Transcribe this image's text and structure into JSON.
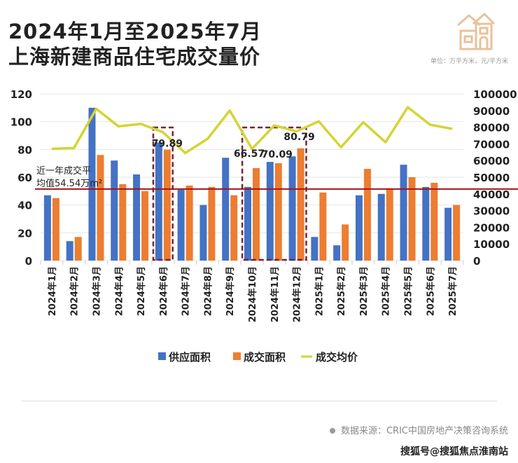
{
  "header": {
    "title_line1": "2024年1月至2025年7月",
    "title_line2": "上海新建商品住宅成交量价",
    "unit": "单位：万平方米，元/平方米",
    "logo_icon": "house-icon"
  },
  "footer": {
    "source": "数据来源：CRIC中国房地产决策咨询系统",
    "watermark": "搜狐号@搜狐焦点淮南站"
  },
  "colors": {
    "supply": "#4472C4",
    "deal": "#ED7D31",
    "price": "#D4D433",
    "avg_line": "#A0161B",
    "highlight_box": "#7A2430"
  },
  "chart_data": {
    "type": "bar",
    "categories": [
      "2024年1月",
      "2024年2月",
      "2024年3月",
      "2024年4月",
      "2024年5月",
      "2024年6月",
      "2024年7月",
      "2024年8月",
      "2024年9月",
      "2024年10月",
      "2024年11月",
      "2024年12月",
      "2025年1月",
      "2025年2月",
      "2025年3月",
      "2025年4月",
      "2025年5月",
      "2025年6月",
      "2025年7月"
    ],
    "series": [
      {
        "name": "供应面积",
        "type": "bar",
        "axis": "left",
        "values": [
          47,
          14,
          110,
          72,
          62,
          85,
          51,
          40,
          74,
          53,
          71,
          75,
          17,
          11,
          47,
          48,
          69,
          53,
          38
        ]
      },
      {
        "name": "成交面积",
        "type": "bar",
        "axis": "left",
        "values": [
          45,
          17,
          76,
          55,
          50,
          79.89,
          54,
          53,
          47,
          66.57,
          70.09,
          80.79,
          49,
          26,
          66,
          52,
          60,
          56,
          40
        ]
      },
      {
        "name": "成交均价",
        "type": "line",
        "axis": "right",
        "values": [
          67000,
          67500,
          91000,
          80500,
          82000,
          77000,
          64500,
          73000,
          90000,
          67000,
          81000,
          77500,
          83500,
          68000,
          83000,
          71000,
          92000,
          81500,
          79000
        ]
      }
    ],
    "left_axis": {
      "range": [
        0,
        120
      ],
      "ticks": [
        "0",
        "20",
        "40",
        "60",
        "80",
        "100",
        "120"
      ]
    },
    "right_axis": {
      "range": [
        0,
        100000
      ],
      "ticks": [
        "0",
        "10000",
        "20000",
        "30000",
        "40000",
        "50000",
        "60000",
        "70000",
        "80000",
        "90000",
        "100000"
      ]
    },
    "data_labels": [
      {
        "category": "2024年6月",
        "text": "79.89"
      },
      {
        "category": "2024年10月",
        "text": "66.57"
      },
      {
        "category": "2024年11月",
        "text": "70.09"
      },
      {
        "category": "2024年12月",
        "text": "80.79"
      }
    ],
    "reference_line": {
      "value": 54.54,
      "label_line1": "近一年成交平",
      "label_line2": "均值54.54万m²"
    },
    "highlight_boxes": [
      [
        "2024年6月"
      ],
      [
        "2024年10月",
        "2024年11月",
        "2024年12月"
      ]
    ],
    "grid": true,
    "legend": "bottom"
  }
}
